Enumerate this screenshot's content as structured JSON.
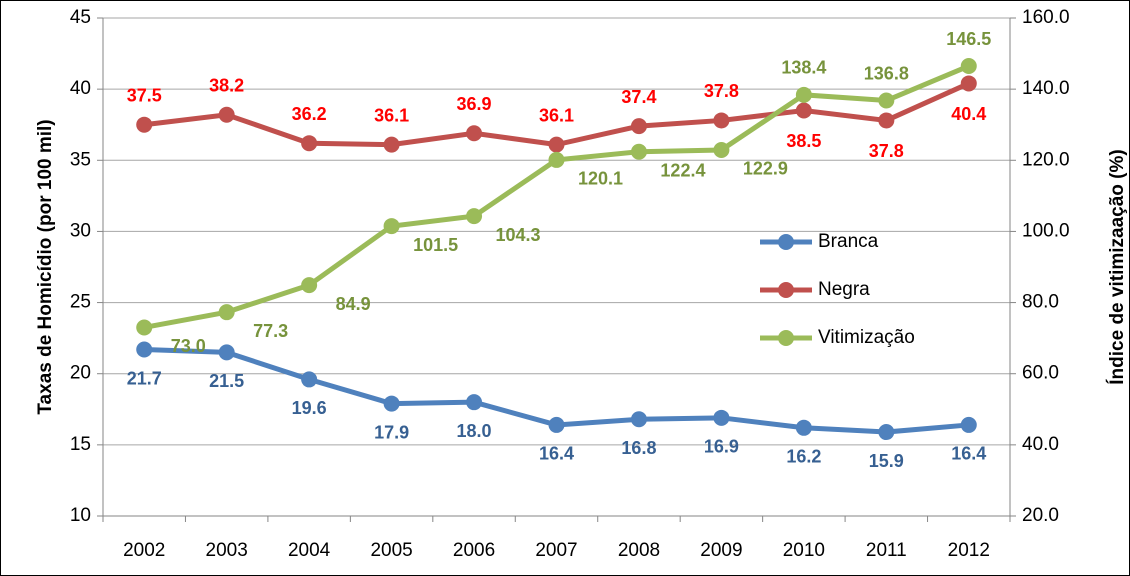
{
  "chart_data": {
    "type": "line",
    "ylabel": "Taxas de Homicídio (por 100 mil)",
    "y2label": "Índice de vitimizaação (%)",
    "categories": [
      "2002",
      "2003",
      "2004",
      "2005",
      "2006",
      "2007",
      "2008",
      "2009",
      "2010",
      "2011",
      "2012"
    ],
    "series": [
      {
        "name": "Branca",
        "color": "#4f81bd",
        "label_color": "#376092",
        "values": [
          21.7,
          21.5,
          19.6,
          17.9,
          18.0,
          16.4,
          16.8,
          16.9,
          16.2,
          15.9,
          16.4
        ],
        "value_labels": [
          "21.7",
          "21.5",
          "19.6",
          "17.9",
          "18.0",
          "16.4",
          "16.8",
          "16.9",
          "16.2",
          "15.9",
          "16.4"
        ]
      },
      {
        "name": "Negra",
        "color": "#c0504d",
        "label_color": "#ff0000",
        "values": [
          37.5,
          38.2,
          36.2,
          36.1,
          36.9,
          36.1,
          37.4,
          37.8,
          38.5,
          37.8,
          40.4
        ],
        "value_labels": [
          "37.5",
          "38.2",
          "36.2",
          "36.1",
          "36.9",
          "36.1",
          "37.4",
          "37.8",
          "38.5",
          "37.8",
          "40.4"
        ]
      },
      {
        "name": "Vitimização",
        "color": "#9bbb59",
        "label_color": "#77933c",
        "axis": "y2",
        "values": [
          73.0,
          77.3,
          84.9,
          101.5,
          104.3,
          120.1,
          122.4,
          122.9,
          138.4,
          136.8,
          146.5
        ],
        "value_labels": [
          "73.0",
          "77.3",
          "84.9",
          "101.5",
          "104.3",
          "120.1",
          "122.4",
          "122.9",
          "138.4",
          "136.8",
          "146.5"
        ]
      }
    ],
    "ylim": [
      10,
      45
    ],
    "yticks": [
      10,
      15,
      20,
      25,
      30,
      35,
      40,
      45
    ],
    "y2lim": [
      20,
      160
    ],
    "y2ticks": [
      {
        "value": 20,
        "label": "20.0"
      },
      {
        "value": 40,
        "label": "40.0"
      },
      {
        "value": 60,
        "label": "60.0"
      },
      {
        "value": 80,
        "label": "80.0"
      },
      {
        "value": 100,
        "label": "100.0"
      },
      {
        "value": 120,
        "label": "120.0"
      },
      {
        "value": 140,
        "label": "140.0"
      },
      {
        "value": 160,
        "label": "160.0"
      }
    ],
    "grid": true,
    "legend": "right"
  }
}
